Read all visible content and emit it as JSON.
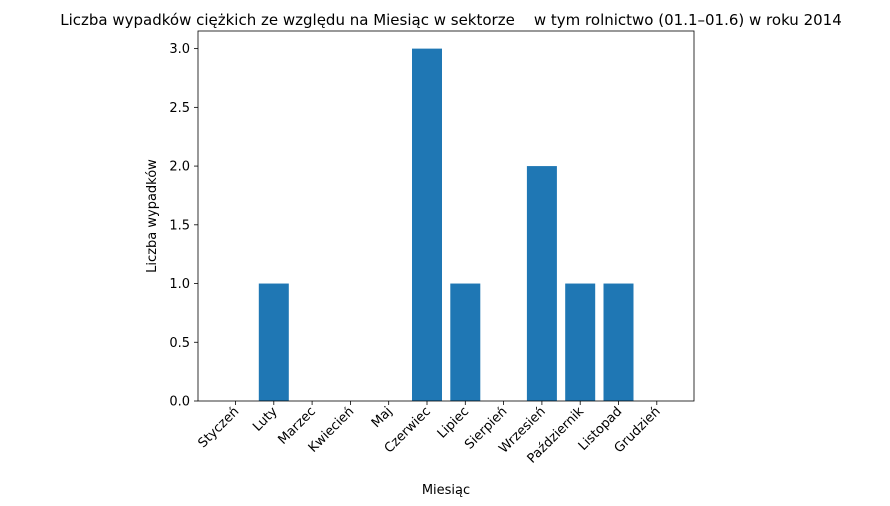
{
  "chart_data": {
    "type": "bar",
    "title": "Liczba wypadków ciężkich ze względu na Miesiąc w sektorze    w tym rolnictwo (01.1–01.6) w roku 2014",
    "xlabel": "Miesiąc",
    "ylabel": "Liczba wypadków",
    "categories": [
      "Styczeń",
      "Luty",
      "Marzec",
      "Kwiecień",
      "Maj",
      "Czerwiec",
      "Lipiec",
      "Sierpień",
      "Wrzesień",
      "Październik",
      "Listopad",
      "Grudzień"
    ],
    "values": [
      0,
      1,
      0,
      0,
      0,
      3,
      1,
      0,
      2,
      1,
      1,
      0
    ],
    "ylim": [
      0,
      3.15
    ],
    "yticks": [
      "0.0",
      "0.5",
      "1.0",
      "1.5",
      "2.0",
      "2.5",
      "3.0"
    ],
    "bar_color": "#1f77b4",
    "grid": false,
    "legend": false
  }
}
